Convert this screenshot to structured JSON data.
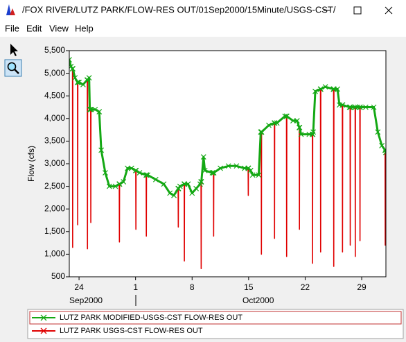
{
  "window": {
    "title": "/FOX RIVER/LUTZ PARK/FLOW-RES OUT/01Sep2000/15Minute/USGS-CST/",
    "menu": [
      "File",
      "Edit",
      "View",
      "Help"
    ]
  },
  "chart_data": {
    "type": "line",
    "y_label": "Flow (cfs)",
    "x_group_labels": [
      "Sep2000",
      "Oct2000"
    ],
    "xlim": [
      "2000-09-22 19:00",
      "2000-11-01 00:00"
    ],
    "xticks": [
      {
        "value": "2000-09-24 00:00",
        "label": "24"
      },
      {
        "value": "2000-10-01 00:00",
        "label": "1"
      },
      {
        "value": "2000-10-08 00:00",
        "label": "8"
      },
      {
        "value": "2000-10-15 00:00",
        "label": "15"
      },
      {
        "value": "2000-10-22 00:00",
        "label": "22"
      },
      {
        "value": "2000-10-29 00:00",
        "label": "29"
      }
    ],
    "ylim": [
      500,
      5500
    ],
    "yticks": [
      500,
      {
        "value": 1000,
        "label": "1,000"
      },
      {
        "value": 1500,
        "label": "1,500"
      },
      {
        "value": 2000,
        "label": "2,000"
      },
      {
        "value": 2500,
        "label": "2,500"
      },
      {
        "value": 3000,
        "label": "3,000"
      },
      {
        "value": 3500,
        "label": "3,500"
      },
      {
        "value": 4000,
        "label": "4,000"
      },
      {
        "value": 4500,
        "label": "4,500"
      },
      {
        "value": 5000,
        "label": "5,000"
      },
      {
        "value": 5500,
        "label": "5,500"
      }
    ],
    "grid": false,
    "x": [
      "2000-09-22 19:00",
      "2000-09-23 00:00",
      "2000-09-23 04:30",
      "2000-09-23 05:00",
      "2000-09-23 05:30",
      "2000-09-23 12:00",
      "2000-09-23 19:30",
      "2000-09-23 20:00",
      "2000-09-23 20:30",
      "2000-09-24 00:00",
      "2000-09-24 12:00",
      "2000-09-25 00:00",
      "2000-09-25 00:30",
      "2000-09-25 01:00",
      "2000-09-25 01:30",
      "2000-09-25 06:00",
      "2000-09-25 08:00",
      "2000-09-25 10:30",
      "2000-09-25 11:00",
      "2000-09-25 11:30",
      "2000-09-26 00:00",
      "2000-09-26 12:00",
      "2000-09-26 18:00",
      "2000-09-27 06:00",
      "2000-09-27 18:00",
      "2000-09-28 12:00",
      "2000-09-28 23:30",
      "2000-09-29 00:00",
      "2000-09-29 00:30",
      "2000-09-29 12:00",
      "2000-09-30 00:00",
      "2000-09-30 12:00",
      "2000-10-01 00:30",
      "2000-10-01 01:00",
      "2000-10-01 01:30",
      "2000-10-01 12:00",
      "2000-10-02 07:30",
      "2000-10-02 08:00",
      "2000-10-02 08:30",
      "2000-10-02 12:00",
      "2000-10-03 12:00",
      "2000-10-04 12:00",
      "2000-10-05 06:00",
      "2000-10-05 18:00",
      "2000-10-06 06:30",
      "2000-10-06 07:00",
      "2000-10-06 07:30",
      "2000-10-06 12:00",
      "2000-10-07 00:30",
      "2000-10-07 01:00",
      "2000-10-07 01:30",
      "2000-10-07 12:00",
      "2000-10-08 00:00",
      "2000-10-08 12:00",
      "2000-10-09 00:00",
      "2000-10-09 02:30",
      "2000-10-09 03:00",
      "2000-10-09 03:30",
      "2000-10-09 10:00",
      "2000-10-09 14:00",
      "2000-10-10 12:00",
      "2000-10-10 15:30",
      "2000-10-10 16:00",
      "2000-10-10 16:30",
      "2000-10-11 12:00",
      "2000-10-12 12:00",
      "2000-10-13 12:00",
      "2000-10-14 12:00",
      "2000-10-14 22:30",
      "2000-10-14 23:00",
      "2000-10-14 23:30",
      "2000-10-15 06:00",
      "2000-10-15 12:00",
      "2000-10-16 06:00",
      "2000-10-16 12:00",
      "2000-10-16 13:30",
      "2000-10-16 14:00",
      "2000-10-16 14:30",
      "2000-10-17 12:00",
      "2000-10-18 04:30",
      "2000-10-18 05:00",
      "2000-10-18 05:30",
      "2000-10-18 12:00",
      "2000-10-19 12:00",
      "2000-10-19 16:30",
      "2000-10-19 17:00",
      "2000-10-19 17:30",
      "2000-10-20 12:00",
      "2000-10-21 00:00",
      "2000-10-21 06:30",
      "2000-10-21 07:00",
      "2000-10-21 07:30",
      "2000-10-21 12:00",
      "2000-10-22 12:00",
      "2000-10-22 21:30",
      "2000-10-22 22:00",
      "2000-10-22 22:30",
      "2000-10-23 00:00",
      "2000-10-23 06:00",
      "2000-10-23 21:30",
      "2000-10-23 22:00",
      "2000-10-23 22:30",
      "2000-10-24 12:00",
      "2000-10-25 12:00",
      "2000-10-25 12:30",
      "2000-10-25 13:00",
      "2000-10-25 13:30",
      "2000-10-26 00:00",
      "2000-10-26 06:00",
      "2000-10-26 14:30",
      "2000-10-26 15:00",
      "2000-10-26 15:30",
      "2000-10-27 12:00",
      "2000-10-27 13:30",
      "2000-10-27 14:00",
      "2000-10-27 14:30",
      "2000-10-28 04:30",
      "2000-10-28 05:00",
      "2000-10-28 05:30",
      "2000-10-28 12:00",
      "2000-10-28 18:30",
      "2000-10-28 19:00",
      "2000-10-28 19:30",
      "2000-10-29 12:00",
      "2000-10-30 12:00",
      "2000-10-31 00:00",
      "2000-10-31 12:00",
      "2000-10-31 21:30",
      "2000-10-31 22:00",
      "2000-10-31 22:30",
      "2000-10-31 23:45"
    ],
    "series": [
      {
        "name": "LUTZ PARK MODIFIED-USGS-CST FLOW-RES OUT",
        "color": "#14a814",
        "values": [
          5300,
          5150,
          5100,
          5100,
          5100,
          4900,
          4800,
          4800,
          4800,
          4800,
          4750,
          4850,
          4850,
          4850,
          4850,
          4900,
          4200,
          4200,
          4200,
          4200,
          4200,
          4150,
          3300,
          2800,
          2500,
          2500,
          2550,
          2550,
          2550,
          2600,
          2900,
          2900,
          2850,
          2850,
          2850,
          2800,
          2750,
          2750,
          2750,
          2750,
          2650,
          2550,
          2350,
          2300,
          2450,
          2450,
          2450,
          2500,
          2550,
          2550,
          2550,
          2550,
          2350,
          2450,
          2550,
          2600,
          2600,
          2600,
          3150,
          2850,
          2800,
          2800,
          2800,
          2800,
          2900,
          2950,
          2950,
          2900,
          2900,
          2900,
          2900,
          2850,
          2750,
          2750,
          3700,
          3700,
          3700,
          3700,
          3850,
          3900,
          3900,
          3900,
          3900,
          4050,
          4050,
          4050,
          4050,
          3950,
          3950,
          3800,
          3800,
          3800,
          3650,
          3650,
          3650,
          3650,
          3650,
          3700,
          4600,
          4650,
          4650,
          4650,
          4700,
          4650,
          4650,
          4650,
          4650,
          4650,
          4300,
          4300,
          4300,
          4300,
          4250,
          4250,
          4250,
          4250,
          4250,
          4250,
          4250,
          4250,
          4250,
          4250,
          4250,
          4250,
          4250,
          3700,
          3400,
          3300,
          3300,
          3300,
          3250
        ]
      },
      {
        "name": "LUTZ PARK USGS-CST FLOW-RES OUT",
        "color": "#e00000",
        "values": [
          5300,
          5150,
          5100,
          1150,
          5100,
          4900,
          4800,
          1650,
          4800,
          4800,
          4750,
          4850,
          4850,
          1120,
          4850,
          4900,
          4200,
          4200,
          1700,
          4200,
          4200,
          4150,
          3300,
          2800,
          2500,
          2500,
          2550,
          1270,
          2550,
          2600,
          2900,
          2900,
          2850,
          1550,
          2850,
          2800,
          2750,
          1400,
          2750,
          2750,
          2650,
          2550,
          2350,
          2300,
          2450,
          1600,
          2450,
          2500,
          2550,
          850,
          2550,
          2550,
          2350,
          2450,
          2550,
          2600,
          680,
          2600,
          3150,
          2850,
          2800,
          2800,
          1400,
          2800,
          2900,
          2950,
          2950,
          2900,
          2900,
          2300,
          2900,
          2850,
          2750,
          2750,
          3700,
          3700,
          1000,
          3700,
          3850,
          3900,
          1350,
          3900,
          3900,
          4050,
          4050,
          950,
          4050,
          3950,
          3950,
          3800,
          1550,
          3800,
          3650,
          3650,
          3650,
          800,
          3650,
          3700,
          4600,
          4650,
          1050,
          4650,
          4700,
          4650,
          4650,
          730,
          4650,
          4650,
          4300,
          4300,
          1050,
          4300,
          4250,
          4250,
          1200,
          4250,
          4250,
          950,
          4250,
          4250,
          4250,
          1300,
          4250,
          4250,
          4250,
          3700,
          3400,
          3300,
          1200,
          3300,
          3250
        ]
      }
    ]
  }
}
